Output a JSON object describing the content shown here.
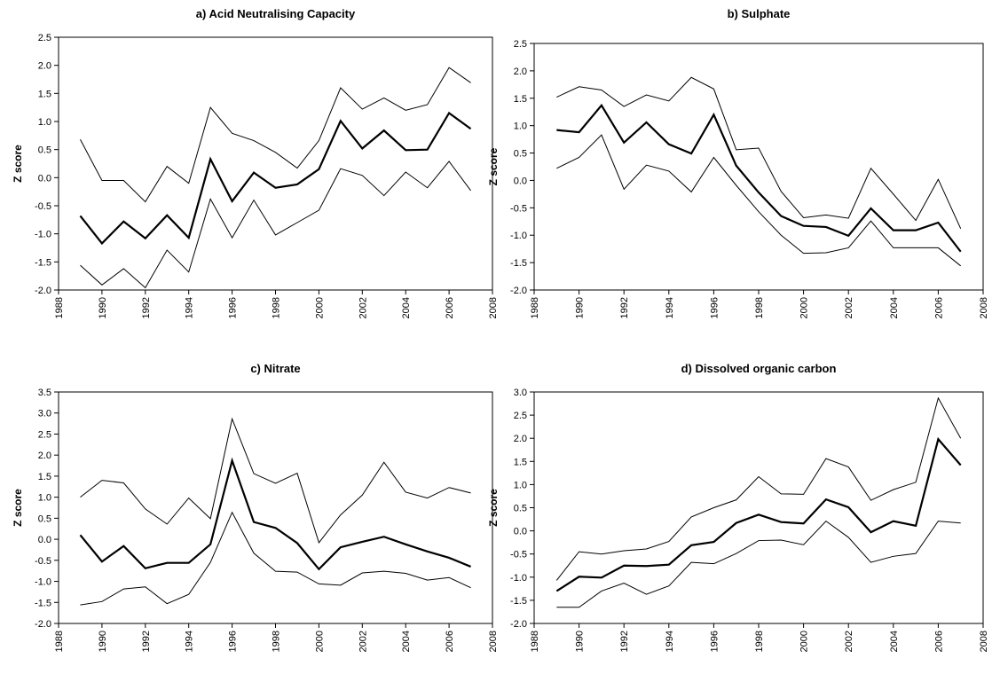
{
  "chart_data": [
    {
      "type": "line",
      "title": "a) Acid Neutralising Capacity",
      "ylabel": "Z score",
      "x": [
        1989,
        1990,
        1991,
        1992,
        1993,
        1994,
        1995,
        1996,
        1997,
        1998,
        1999,
        2000,
        2001,
        2002,
        2003,
        2004,
        2005,
        2006,
        2007
      ],
      "xlim": [
        1988,
        2008
      ],
      "xticks": [
        1988,
        1990,
        1992,
        1994,
        1996,
        1998,
        2000,
        2002,
        2004,
        2006,
        2008
      ],
      "ylim": [
        -2,
        2.5
      ],
      "yticks": [
        {
          "value": -2,
          "label": "-2.0"
        },
        -1.5,
        {
          "value": -1,
          "label": "-1.0"
        },
        -0.5,
        {
          "value": 0,
          "label": "0.0"
        },
        0.5,
        {
          "value": 1,
          "label": "1.0"
        },
        1.5,
        {
          "value": 2,
          "label": "2.0"
        },
        2.5
      ],
      "series": [
        {
          "color": "#000000",
          "width": 1,
          "values": [
            0.68,
            -0.05,
            -0.05,
            -0.43,
            0.2,
            -0.1,
            1.25,
            0.79,
            0.66,
            0.45,
            0.17,
            0.66,
            1.6,
            1.22,
            1.42,
            1.2,
            1.3,
            1.96,
            1.69
          ]
        },
        {
          "color": "#000000",
          "width": 2.2,
          "values": [
            -0.68,
            -1.17,
            -0.78,
            -1.08,
            -0.67,
            -1.07,
            0.33,
            -0.42,
            0.09,
            -0.18,
            -0.12,
            0.15,
            1.01,
            0.52,
            0.84,
            0.49,
            0.5,
            1.15,
            0.87
          ]
        },
        {
          "color": "#000000",
          "width": 1,
          "values": [
            -1.56,
            -1.91,
            -1.62,
            -1.96,
            -1.29,
            -1.68,
            -0.38,
            -1.07,
            -0.4,
            -1.02,
            -0.8,
            -0.58,
            0.16,
            0.04,
            -0.32,
            0.1,
            -0.18,
            0.29,
            -0.23
          ]
        }
      ]
    },
    {
      "type": "line",
      "title": "b) Sulphate",
      "ylabel": "Z score",
      "x": [
        1989,
        1990,
        1991,
        1992,
        1993,
        1994,
        1995,
        1996,
        1997,
        1998,
        1999,
        2000,
        2001,
        2002,
        2003,
        2004,
        2005,
        2006,
        2007
      ],
      "xlim": [
        1988,
        2008
      ],
      "xticks": [
        1988,
        1990,
        1992,
        1994,
        1996,
        1998,
        2000,
        2002,
        2004,
        2006,
        2008
      ],
      "ylim": [
        -2,
        2.5
      ],
      "yticks": [
        {
          "value": -2,
          "label": "-2.0"
        },
        -1.5,
        {
          "value": -1,
          "label": "-1.0"
        },
        -0.5,
        {
          "value": 0,
          "label": "0.0"
        },
        0.5,
        {
          "value": 1,
          "label": "1.0"
        },
        1.5,
        {
          "value": 2,
          "label": "2.0"
        },
        2.5
      ],
      "series": [
        {
          "color": "#000000",
          "width": 1,
          "values": [
            1.52,
            1.71,
            1.65,
            1.35,
            1.56,
            1.45,
            1.88,
            1.67,
            0.56,
            0.59,
            -0.2,
            -0.68,
            -0.63,
            -0.69,
            0.22,
            -0.25,
            -0.73,
            0.02,
            -0.88
          ]
        },
        {
          "color": "#000000",
          "width": 2.2,
          "values": [
            0.92,
            0.88,
            1.37,
            0.69,
            1.06,
            0.66,
            0.49,
            1.2,
            0.27,
            -0.22,
            -0.65,
            -0.83,
            -0.85,
            -1.01,
            -0.51,
            -0.91,
            -0.91,
            -0.77,
            -1.3
          ]
        },
        {
          "color": "#000000",
          "width": 1,
          "values": [
            0.22,
            0.42,
            0.83,
            -0.16,
            0.28,
            0.17,
            -0.21,
            0.42,
            -0.09,
            -0.57,
            -1.0,
            -1.33,
            -1.32,
            -1.23,
            -0.74,
            -1.23,
            -1.23,
            -1.23,
            -1.56
          ]
        }
      ]
    },
    {
      "type": "line",
      "title": "c) Nitrate",
      "ylabel": "Z score",
      "x": [
        1989,
        1990,
        1991,
        1992,
        1993,
        1994,
        1995,
        1996,
        1997,
        1998,
        1999,
        2000,
        2001,
        2002,
        2003,
        2004,
        2005,
        2006,
        2007
      ],
      "xlim": [
        1988,
        2008
      ],
      "xticks": [
        1988,
        1990,
        1992,
        1994,
        1996,
        1998,
        2000,
        2002,
        2004,
        2006,
        2008
      ],
      "ylim": [
        -2,
        3.5
      ],
      "yticks": [
        {
          "value": -2,
          "label": "-2.0"
        },
        -1.5,
        {
          "value": -1,
          "label": "-1.0"
        },
        -0.5,
        {
          "value": 0,
          "label": "0.0"
        },
        0.5,
        {
          "value": 1,
          "label": "1.0"
        },
        1.5,
        {
          "value": 2,
          "label": "2.0"
        },
        2.5,
        {
          "value": 3,
          "label": "3.0"
        },
        3.5
      ],
      "series": [
        {
          "color": "#000000",
          "width": 1,
          "values": [
            1.0,
            1.4,
            1.34,
            0.72,
            0.36,
            0.98,
            0.49,
            2.86,
            1.56,
            1.33,
            1.57,
            -0.08,
            0.58,
            1.05,
            1.83,
            1.12,
            0.98,
            1.23,
            1.1
          ]
        },
        {
          "color": "#000000",
          "width": 2.2,
          "values": [
            0.1,
            -0.53,
            -0.16,
            -0.69,
            -0.56,
            -0.56,
            -0.12,
            1.87,
            0.41,
            0.27,
            -0.09,
            -0.71,
            -0.19,
            -0.06,
            0.06,
            -0.12,
            -0.29,
            -0.44,
            -0.65
          ]
        },
        {
          "color": "#000000",
          "width": 1,
          "values": [
            -1.56,
            -1.48,
            -1.18,
            -1.13,
            -1.53,
            -1.31,
            -0.55,
            0.64,
            -0.33,
            -0.76,
            -0.78,
            -1.06,
            -1.09,
            -0.8,
            -0.76,
            -0.81,
            -0.97,
            -0.91,
            -1.15
          ]
        }
      ]
    },
    {
      "type": "line",
      "title": "d) Dissolved organic carbon",
      "ylabel": "Z score",
      "x": [
        1989,
        1990,
        1991,
        1992,
        1993,
        1994,
        1995,
        1996,
        1997,
        1998,
        1999,
        2000,
        2001,
        2002,
        2003,
        2004,
        2005,
        2006,
        2007
      ],
      "xlim": [
        1988,
        2008
      ],
      "xticks": [
        1988,
        1990,
        1992,
        1994,
        1996,
        1998,
        2000,
        2002,
        2004,
        2006,
        2008
      ],
      "ylim": [
        -2,
        3
      ],
      "yticks": [
        {
          "value": -2,
          "label": "-2.0"
        },
        -1.5,
        {
          "value": -1,
          "label": "-1.0"
        },
        -0.5,
        {
          "value": 0,
          "label": "0.0"
        },
        0.5,
        {
          "value": 1,
          "label": "1.0"
        },
        1.5,
        {
          "value": 2,
          "label": "2.0"
        },
        2.5,
        {
          "value": 3,
          "label": "3.0"
        }
      ],
      "series": [
        {
          "color": "#000000",
          "width": 1,
          "values": [
            -1.07,
            -0.45,
            -0.5,
            -0.43,
            -0.39,
            -0.23,
            0.3,
            0.5,
            0.67,
            1.17,
            0.8,
            0.79,
            1.56,
            1.38,
            0.66,
            0.89,
            1.05,
            2.87,
            2.0
          ]
        },
        {
          "color": "#000000",
          "width": 2.2,
          "values": [
            -1.3,
            -0.99,
            -1.01,
            -0.75,
            -0.76,
            -0.73,
            -0.31,
            -0.24,
            0.17,
            0.35,
            0.19,
            0.16,
            0.68,
            0.51,
            -0.03,
            0.21,
            0.11,
            1.98,
            1.42
          ]
        },
        {
          "color": "#000000",
          "width": 1,
          "values": [
            -1.65,
            -1.65,
            -1.3,
            -1.13,
            -1.37,
            -1.19,
            -0.68,
            -0.71,
            -0.49,
            -0.21,
            -0.2,
            -0.3,
            0.21,
            -0.14,
            -0.68,
            -0.55,
            -0.49,
            0.21,
            0.17
          ]
        }
      ]
    }
  ]
}
